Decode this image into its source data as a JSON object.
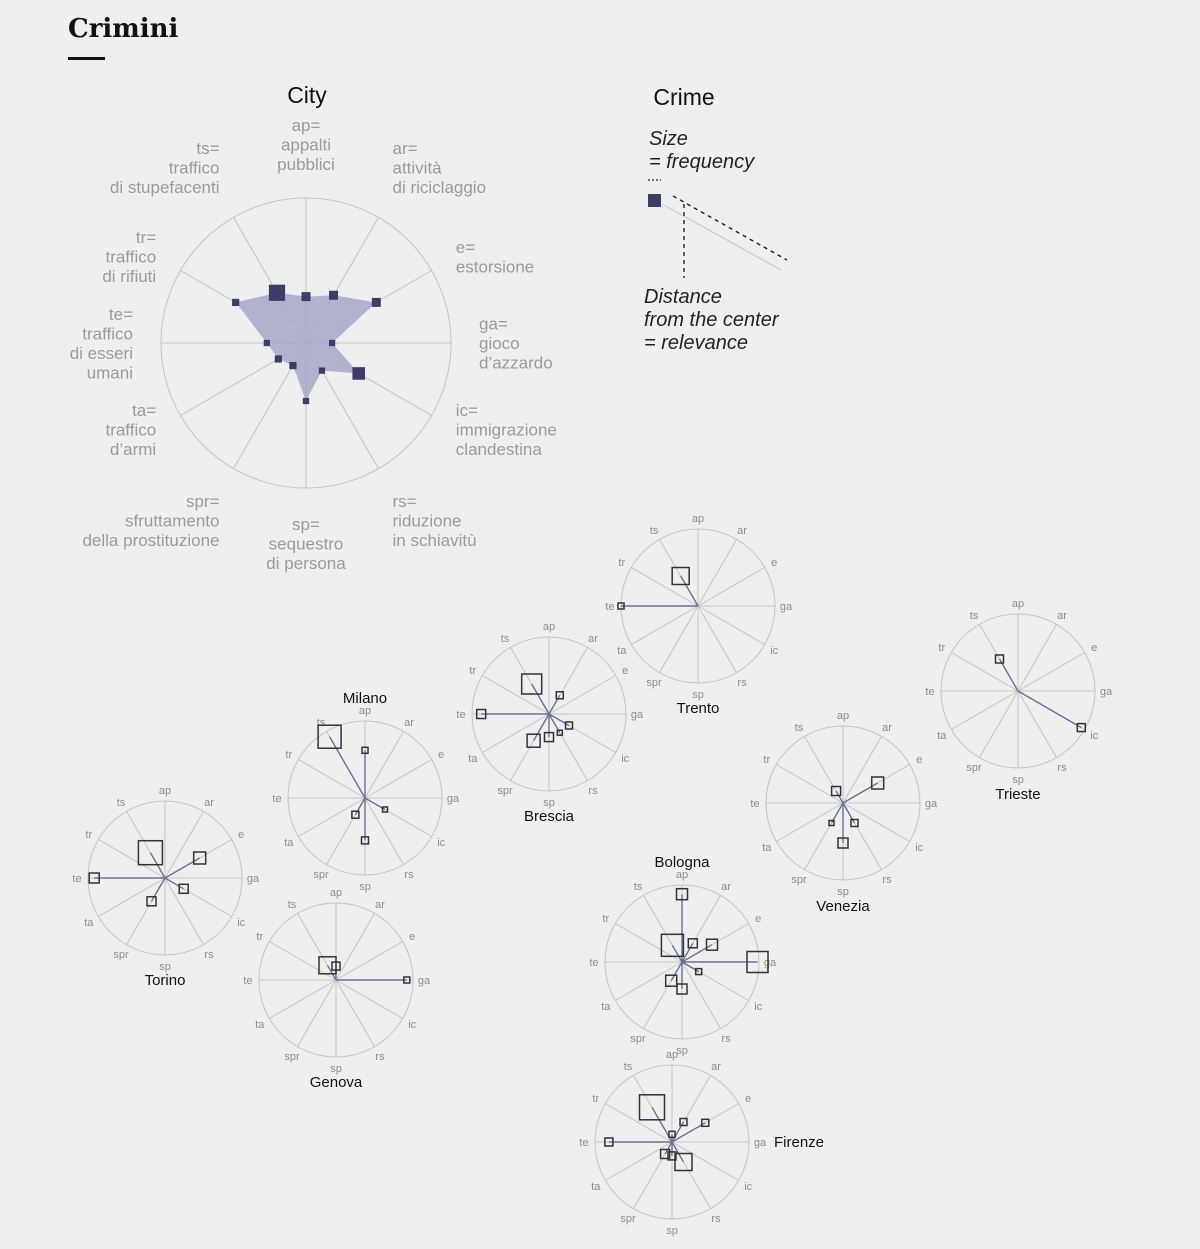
{
  "title": "Crimini",
  "headings": {
    "city": "City",
    "crime": "Crime"
  },
  "legend_labels": [
    {
      "code": "ap",
      "lines": [
        "ap=",
        "appalti",
        "pubblici"
      ]
    },
    {
      "code": "ar",
      "lines": [
        "ar=",
        "attività",
        "di riciclaggio"
      ]
    },
    {
      "code": "e",
      "lines": [
        "e=",
        "estorsione"
      ]
    },
    {
      "code": "ga",
      "lines": [
        "ga=",
        "gioco",
        "d’azzardo"
      ]
    },
    {
      "code": "ic",
      "lines": [
        "ic=",
        "immigrazione",
        "clandestina"
      ]
    },
    {
      "code": "rs",
      "lines": [
        "rs=",
        "riduzione",
        "in schiavitù"
      ]
    },
    {
      "code": "sp",
      "lines": [
        "sp=",
        "sequestro",
        "di persona"
      ]
    },
    {
      "code": "spr",
      "lines": [
        "spr=",
        "sfruttamento",
        "della prostituzione"
      ]
    },
    {
      "code": "ta",
      "lines": [
        "ta=",
        "traffico",
        "d’armi"
      ]
    },
    {
      "code": "te",
      "lines": [
        "te=",
        "traffico",
        "di esseri",
        "umani"
      ]
    },
    {
      "code": "tr",
      "lines": [
        "tr=",
        "traffico",
        "di rifiuti"
      ]
    },
    {
      "code": "ts",
      "lines": [
        "ts=",
        "traffico",
        "di stupefacenti"
      ]
    }
  ],
  "crime_legend": {
    "size_lines": [
      "Size",
      "= frequency"
    ],
    "distance_lines": [
      "Distance",
      "from the center",
      "= relevance"
    ]
  },
  "colors": {
    "accent": "#3d3d66",
    "fill": "#a7a7c8",
    "grid": "#c4c4c4",
    "text": "#111111",
    "muted": "#9a9a9a",
    "background": "#eef0ef"
  },
  "chart_data": {
    "type": "radar",
    "axes": [
      "ap",
      "ar",
      "e",
      "ga",
      "ic",
      "rs",
      "sp",
      "spr",
      "ta",
      "te",
      "tr",
      "ts"
    ],
    "legend_example": {
      "values": [
        0.32,
        0.38,
        0.56,
        0.18,
        0.42,
        0.22,
        0.4,
        0.18,
        0.22,
        0.27,
        0.56,
        0.4
      ],
      "sizes": [
        0.5,
        0.5,
        0.5,
        0.35,
        0.7,
        0.35,
        0.35,
        0.4,
        0.4,
        0.35,
        0.4,
        0.9
      ]
    },
    "cities": [
      {
        "name": "Trento",
        "values": [
          0,
          0,
          0,
          0,
          0,
          0,
          0,
          0,
          0,
          1.0,
          0,
          0.45
        ],
        "sizes": [
          0,
          0,
          0,
          0,
          0,
          0,
          0,
          0,
          0,
          0.3,
          0,
          0.85
        ]
      },
      {
        "name": "Brescia",
        "values": [
          0,
          0.28,
          0,
          0,
          0.3,
          0.28,
          0.3,
          0.4,
          0,
          0.88,
          0,
          0.45
        ],
        "sizes": [
          0,
          0.35,
          0,
          0,
          0.35,
          0.25,
          0.45,
          0.65,
          0,
          0.45,
          0,
          1.0
        ]
      },
      {
        "name": "Milano",
        "values": [
          0.62,
          0,
          0,
          0,
          0.3,
          0,
          0.55,
          0.25,
          0,
          0,
          0,
          0.92
        ],
        "sizes": [
          0.3,
          0,
          0,
          0,
          0.25,
          0,
          0.35,
          0.35,
          0,
          0,
          0,
          1.15
        ]
      },
      {
        "name": "Torino",
        "values": [
          0,
          0,
          0.52,
          0,
          0.28,
          0,
          0,
          0.35,
          0,
          0.92,
          0,
          0.38
        ],
        "sizes": [
          0,
          0,
          0.6,
          0,
          0.45,
          0,
          0,
          0.45,
          0,
          0.5,
          0,
          1.2
        ]
      },
      {
        "name": "Genova",
        "values": [
          0.18,
          0,
          0,
          0.92,
          0,
          0,
          0,
          0,
          0,
          0,
          0,
          0.22
        ],
        "sizes": [
          0.4,
          0,
          0,
          0.3,
          0,
          0,
          0,
          0,
          0,
          0,
          0,
          0.85
        ]
      },
      {
        "name": "Trieste",
        "values": [
          0,
          0,
          0,
          0,
          0.95,
          0,
          0,
          0,
          0,
          0,
          0,
          0.48
        ],
        "sizes": [
          0,
          0,
          0,
          0,
          0.4,
          0,
          0,
          0,
          0,
          0,
          0,
          0.4
        ]
      },
      {
        "name": "Venezia",
        "values": [
          0,
          0,
          0.52,
          0,
          0,
          0.3,
          0.52,
          0.3,
          0,
          0,
          0,
          0.18
        ],
        "sizes": [
          0,
          0,
          0.6,
          0,
          0,
          0.35,
          0.5,
          0.25,
          0,
          0,
          0,
          0.45
        ]
      },
      {
        "name": "Bologna",
        "values": [
          0.88,
          0.28,
          0.45,
          0.98,
          0.25,
          0,
          0.35,
          0.28,
          0,
          0,
          0,
          0.25
        ],
        "sizes": [
          0.55,
          0.45,
          0.55,
          1.05,
          0.3,
          0,
          0.5,
          0.55,
          0,
          0,
          0,
          1.1
        ]
      },
      {
        "name": "Firenze",
        "values": [
          0.1,
          0.3,
          0.5,
          0,
          0,
          0.3,
          0.18,
          0.18,
          0,
          0.82,
          0,
          0.52
        ],
        "sizes": [
          0.3,
          0.35,
          0.35,
          0,
          0,
          0.85,
          0.4,
          0.45,
          0,
          0.4,
          0,
          1.25
        ]
      }
    ]
  }
}
